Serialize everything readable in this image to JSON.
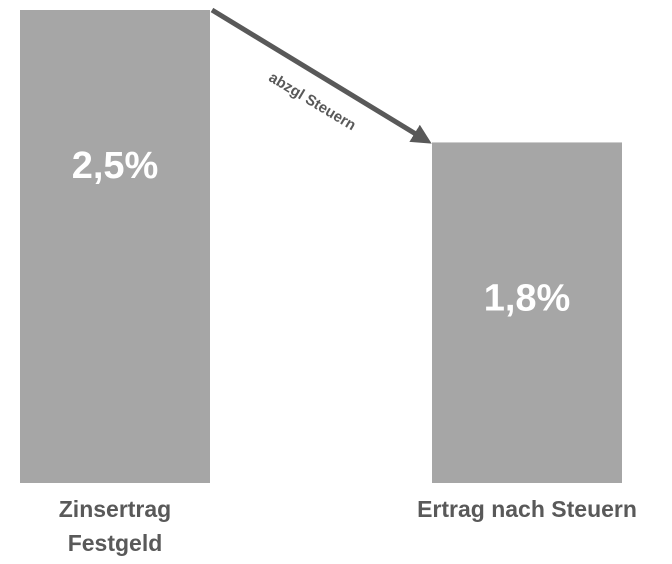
{
  "chart_data": {
    "type": "bar",
    "categories": [
      "Zinsertrag Festgeld",
      "Ertrag nach Steuern"
    ],
    "values": [
      2.5,
      1.8
    ],
    "value_labels": [
      "2,5%",
      "1,8%"
    ],
    "color": "#a6a6a6",
    "ylim": [
      0,
      2.5
    ],
    "annotations": [
      {
        "text": "abzgl Steuern"
      }
    ]
  }
}
